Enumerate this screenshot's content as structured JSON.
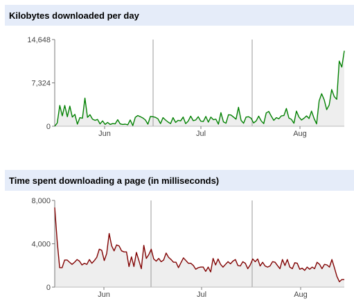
{
  "chart_data": [
    {
      "type": "area",
      "title": "Kilobytes downloaded per day",
      "xlabel": "",
      "ylabel": "",
      "ylim": [
        0,
        14648
      ],
      "yticks": [
        "14,648",
        "7,324",
        "0"
      ],
      "ytick_values": [
        14648,
        7324,
        0
      ],
      "xtick_labels": [
        "Jun",
        "Jul",
        "Aug"
      ],
      "month_dividers": [
        "Jul",
        "Aug"
      ],
      "grid": false,
      "line_color": "#008000",
      "fill_color": "#eeeeee",
      "series": [
        {
          "values": [
            0,
            550,
            3500,
            1750,
            3500,
            1600,
            3400,
            1550,
            2000,
            350,
            1450,
            1350,
            4750,
            1500,
            1950,
            1200,
            1000,
            1150,
            400,
            900,
            300,
            650,
            300,
            450,
            400,
            1100,
            400,
            300,
            350,
            250,
            1050,
            100,
            1500,
            1800,
            1600,
            1400,
            1050,
            350,
            1650,
            1600,
            1500,
            1250,
            450,
            1450,
            1050,
            700,
            450,
            1450,
            650,
            1000,
            900,
            1550,
            450,
            850,
            1700,
            950,
            1050,
            1600,
            850,
            800,
            1650,
            700,
            1550,
            1100,
            1200,
            350,
            2300,
            750,
            500,
            1950,
            1900,
            1550,
            1200,
            3200,
            1000,
            500,
            1550,
            1600,
            1350,
            550,
            900,
            1700,
            900,
            450,
            2250,
            2500,
            1700,
            1000,
            1450,
            1250,
            1750,
            1800,
            3000,
            1400,
            1150,
            500,
            2550,
            1550,
            1050,
            1350,
            1750,
            1300,
            2550,
            1300,
            400,
            4300,
            5500,
            4500,
            2800,
            3600,
            6200,
            5000,
            4550,
            11000,
            10000,
            12750
          ]
        }
      ]
    },
    {
      "type": "area",
      "title": "Time spent downloading a page (in milliseconds)",
      "xlabel": "",
      "ylabel": "",
      "ylim": [
        0,
        8000
      ],
      "yticks": [
        "8,000",
        "4,000",
        "0"
      ],
      "ytick_values": [
        8000,
        4000,
        0
      ],
      "xtick_labels": [
        "Jun",
        "Jul",
        "Aug"
      ],
      "month_dividers": [
        "Jul",
        "Aug"
      ],
      "grid": false,
      "line_color": "#800000",
      "fill_color": "#eeeeee",
      "series": [
        {
          "values": [
            7350,
            4200,
            1800,
            1800,
            2500,
            2500,
            2300,
            2100,
            2300,
            2550,
            2400,
            2050,
            2200,
            2100,
            2550,
            2200,
            2450,
            2750,
            3500,
            3400,
            2450,
            3100,
            4950,
            3800,
            3350,
            3900,
            3800,
            3350,
            3250,
            3250,
            1900,
            2800,
            1900,
            3200,
            2450,
            1700,
            3850,
            2650,
            3000,
            3500,
            2600,
            2400,
            2650,
            2350,
            2500,
            3150,
            2750,
            2550,
            2300,
            2300,
            1800,
            2250,
            2700,
            2450,
            2200,
            2200,
            2000,
            1650,
            1800,
            1850,
            1850,
            1450,
            1850,
            1400,
            2650,
            2050,
            2600,
            2100,
            1850,
            2100,
            2350,
            2150,
            2400,
            2550,
            2000,
            1950,
            2350,
            2200,
            1700,
            2050,
            2600,
            2350,
            2600,
            1950,
            2300,
            1950,
            1850,
            1950,
            2350,
            2300,
            2000,
            1700,
            2550,
            2000,
            2550,
            1850,
            1700,
            2250,
            2200,
            1650,
            1750,
            1550,
            1850,
            1650,
            1850,
            1700,
            2300,
            2100,
            1700,
            2100,
            2050,
            1850,
            2550,
            1800,
            1000,
            500,
            700,
            700
          ]
        }
      ]
    }
  ]
}
